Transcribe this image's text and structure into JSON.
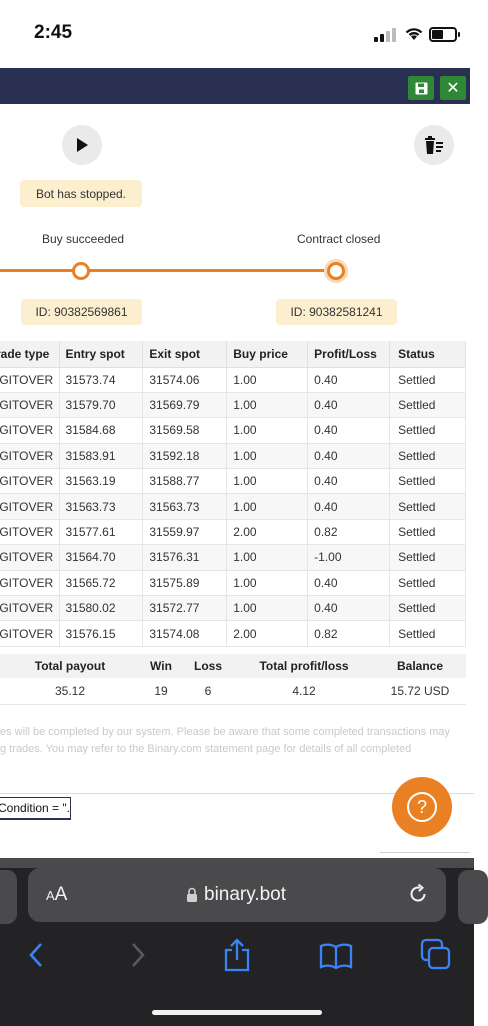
{
  "status_bar": {
    "time": "2:45"
  },
  "controls": {
    "status_message": "Bot has stopped.",
    "step_1_label": "Buy succeeded",
    "step_2_label": "Contract closed",
    "buy_id": "ID: 90382569861",
    "contract_id": "ID: 90382581241"
  },
  "transactions": {
    "headers": [
      "rade type",
      "Entry spot",
      "Exit spot",
      "Buy price",
      "Profit/Loss",
      "Status"
    ],
    "rows": [
      {
        "type": "IGITOVER",
        "entry": "31573.74",
        "exit": "31574.06",
        "buy": "1.00",
        "pl": "0.40",
        "status": "Settled"
      },
      {
        "type": "IGITOVER",
        "entry": "31579.70",
        "exit": "31569.79",
        "buy": "1.00",
        "pl": "0.40",
        "status": "Settled"
      },
      {
        "type": "IGITOVER",
        "entry": "31584.68",
        "exit": "31569.58",
        "buy": "1.00",
        "pl": "0.40",
        "status": "Settled"
      },
      {
        "type": "IGITOVER",
        "entry": "31583.91",
        "exit": "31592.18",
        "buy": "1.00",
        "pl": "0.40",
        "status": "Settled"
      },
      {
        "type": "IGITOVER",
        "entry": "31563.19",
        "exit": "31588.77",
        "buy": "1.00",
        "pl": "0.40",
        "status": "Settled"
      },
      {
        "type": "IGITOVER",
        "entry": "31563.73",
        "exit": "31563.73",
        "buy": "1.00",
        "pl": "0.40",
        "status": "Settled"
      },
      {
        "type": "IGITOVER",
        "entry": "31577.61",
        "exit": "31559.97",
        "buy": "2.00",
        "pl": "0.82",
        "status": "Settled"
      },
      {
        "type": "IGITOVER",
        "entry": "31564.70",
        "exit": "31576.31",
        "buy": "1.00",
        "pl": "-1.00",
        "status": "Settled"
      },
      {
        "type": "IGITOVER",
        "entry": "31565.72",
        "exit": "31575.89",
        "buy": "1.00",
        "pl": "0.40",
        "status": "Settled"
      },
      {
        "type": "IGITOVER",
        "entry": "31580.02",
        "exit": "31572.77",
        "buy": "1.00",
        "pl": "0.40",
        "status": "Settled"
      },
      {
        "type": "IGITOVER",
        "entry": "31576.15",
        "exit": "31574.08",
        "buy": "2.00",
        "pl": "0.82",
        "status": "Settled"
      }
    ]
  },
  "summary": {
    "headers": [
      "Total payout",
      "Win",
      "Loss",
      "Total profit/loss",
      "Balance"
    ],
    "total_payout": "35.12",
    "win": "19",
    "loss": "6",
    "total_profit_loss": "4.12",
    "balance": "15.72 USD"
  },
  "notice": {
    "line_1": "es will be completed by our system. Please be aware that some completed transactions may",
    "line_2": "g trades. You may refer to the Binary.com statement page for details of all completed"
  },
  "condition_text": "Condition = \".",
  "browser": {
    "text_size_label_small": "A",
    "text_size_label_large": "A",
    "url": "binary.bot"
  },
  "colors": {
    "header_navy": "#2a3052",
    "accent_orange": "#e98024",
    "save_green": "#2e8836",
    "profit_green": "#2e8836",
    "loss_red": "#e02b2b",
    "pill_background": "#fcefcf"
  }
}
